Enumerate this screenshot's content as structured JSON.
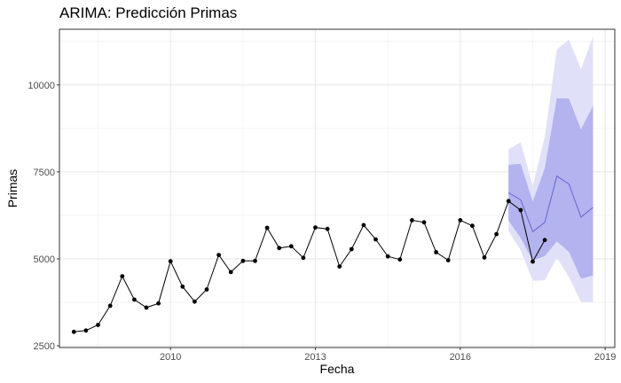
{
  "title": "ARIMA: Predicción Primas",
  "chart_data": {
    "type": "line",
    "title": "ARIMA: Predicción Primas",
    "xlabel": "Fecha",
    "ylabel": "Primas",
    "xlim": [
      2007.7,
      2019.2
    ],
    "ylim": [
      2450,
      11600
    ],
    "x_ticks": [
      2010,
      2013,
      2016,
      2019
    ],
    "x_tick_labels": [
      "2010",
      "2013",
      "2016",
      "2019"
    ],
    "x_minor_ticks": [
      2008.5,
      2011.5,
      2014.5,
      2017.5
    ],
    "y_ticks": [
      2500,
      5000,
      7500,
      10000
    ],
    "y_tick_labels": [
      "2500",
      "5000",
      "7500",
      "10000"
    ],
    "y_minor_ticks": [
      3750,
      6250,
      8750,
      11250
    ],
    "grid": true,
    "colors": {
      "observed": "#000000",
      "forecast": "#6666cc",
      "band_80": "#b3b3f0",
      "band_95": "#e0e0f8"
    },
    "series": [
      {
        "x": [
          2008.0,
          2008.25,
          2008.5,
          2008.75,
          2009.0,
          2009.25,
          2009.5,
          2009.75,
          2010.0,
          2010.25,
          2010.5,
          2010.75,
          2011.0,
          2011.25,
          2011.5,
          2011.75,
          2012.0,
          2012.25,
          2012.5,
          2012.75,
          2013.0,
          2013.25,
          2013.5,
          2013.75,
          2014.0,
          2014.25,
          2014.5,
          2014.75,
          2015.0,
          2015.25,
          2015.5,
          2015.75,
          2016.0,
          2016.25,
          2016.5,
          2016.75,
          2017.0,
          2017.25,
          2017.5,
          2017.75
        ],
        "values": [
          2900,
          2940,
          3100,
          3650,
          4500,
          3830,
          3600,
          3720,
          4930,
          4200,
          3770,
          4120,
          5110,
          4620,
          4940,
          4940,
          5890,
          5310,
          5360,
          5030,
          5900,
          5860,
          4780,
          5280,
          5970,
          5560,
          5070,
          4980,
          6110,
          6050,
          5190,
          4960,
          6110,
          5950,
          5040,
          5710,
          6660,
          6400,
          4920,
          5540
        ]
      }
    ],
    "forecast": {
      "x": [
        2017.0,
        2017.25,
        2017.5,
        2017.75,
        2018.0,
        2018.25,
        2018.5,
        2018.75
      ],
      "mean": [
        6900,
        6700,
        5780,
        6050,
        7380,
        7150,
        6200,
        6480
      ],
      "lo80": [
        6100,
        5600,
        4950,
        5080,
        5500,
        5200,
        4430,
        4520
      ],
      "hi80": [
        7700,
        7730,
        6650,
        7600,
        9620,
        9610,
        8720,
        9400
      ],
      "lo95": [
        5800,
        5250,
        4370,
        4380,
        5030,
        4480,
        3760,
        3760
      ],
      "hi95": [
        8150,
        8350,
        7100,
        8500,
        11020,
        11300,
        10450,
        11400
      ]
    }
  }
}
